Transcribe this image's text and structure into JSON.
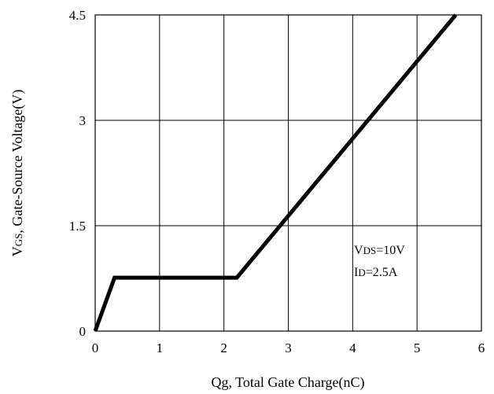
{
  "chart_data": {
    "type": "line",
    "xlabel": {
      "main": "Qg, Total Gate Charge(nC)"
    },
    "ylabel": {
      "prefix": "V",
      "sub": "GS",
      "rest": ", Gate-Source Voltage(V)"
    },
    "xlim": [
      0,
      6
    ],
    "ylim": [
      0,
      4.5
    ],
    "x_ticks": [
      0,
      1,
      2,
      3,
      4,
      5,
      6
    ],
    "x_tick_labels": [
      "0",
      "1",
      "2",
      "3",
      "4",
      "5",
      "6"
    ],
    "y_ticks": [
      0,
      1.5,
      3,
      4.5
    ],
    "y_tick_labels": [
      "0",
      "1.5",
      "3",
      "4.5"
    ],
    "grid": true,
    "series": [
      {
        "x": [
          0,
          0.3,
          2.2,
          5.6
        ],
        "y": [
          0,
          0.76,
          0.76,
          4.5
        ],
        "color": "#000000"
      }
    ],
    "annotations": [
      {
        "prefix": "V",
        "sub": "DS",
        "rest": "=10V"
      },
      {
        "prefix": "I",
        "sub": "D",
        "rest": "=2.5A"
      }
    ]
  }
}
